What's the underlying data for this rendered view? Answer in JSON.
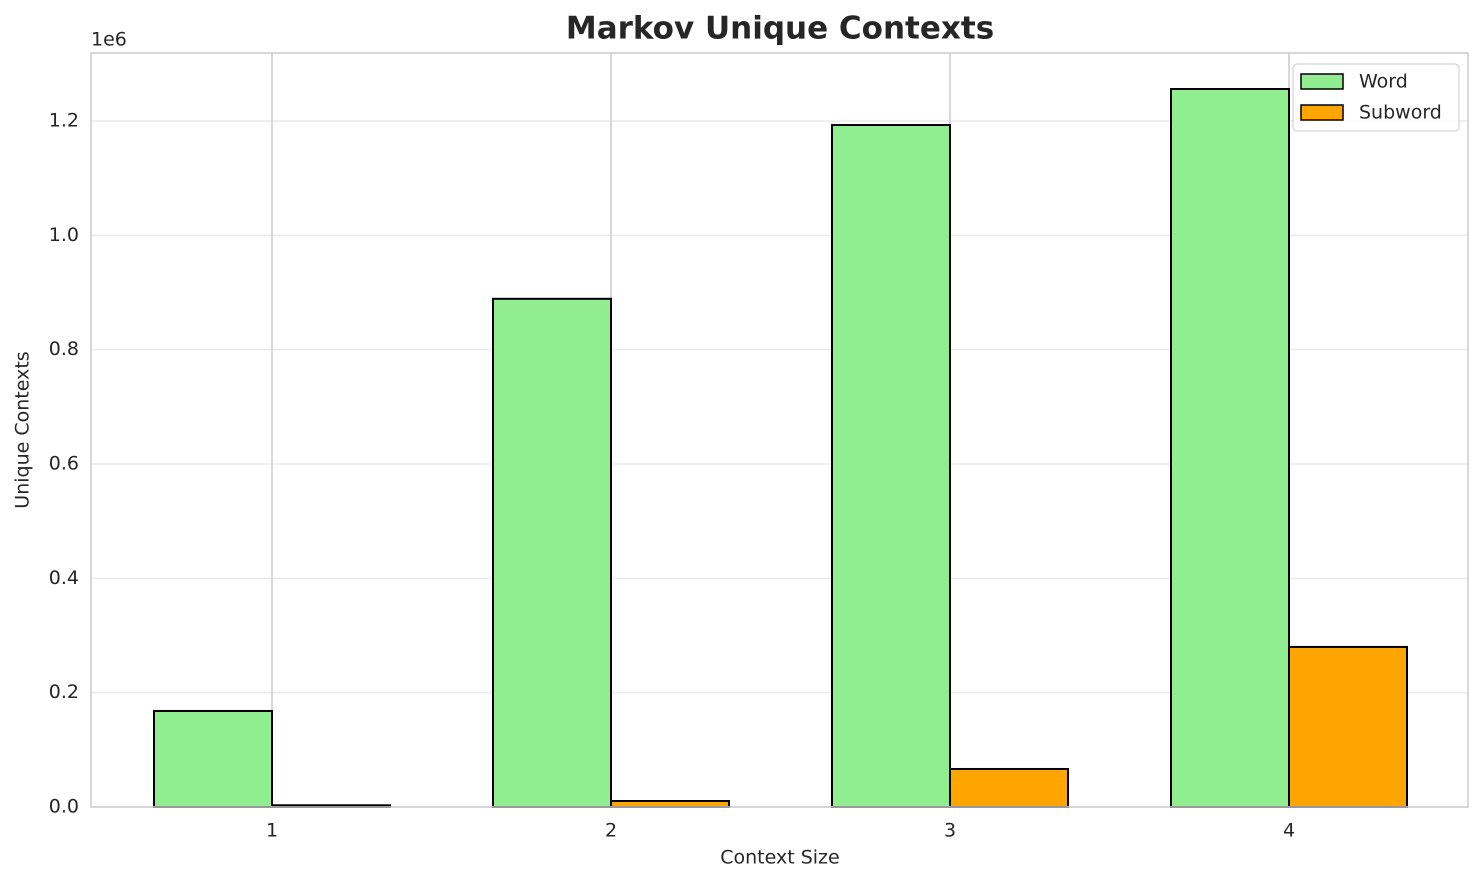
{
  "chart_data": {
    "type": "bar",
    "title": "Markov Unique Contexts",
    "x_label": "Context Size",
    "y_label": "Unique Contexts",
    "y_offset_label": "1e6",
    "categories": [
      "1",
      "2",
      "3",
      "4"
    ],
    "series": [
      {
        "name": "Word",
        "color": "#90ee90",
        "values": [
          168000,
          889000,
          1193000,
          1256000
        ]
      },
      {
        "name": "Subword",
        "color": "#ffa500",
        "values": [
          3000,
          10500,
          66500,
          280000
        ]
      }
    ],
    "ylim": [
      0,
      1319000
    ],
    "yticks": [
      {
        "value": 0,
        "label": "0.0"
      },
      {
        "value": 200000,
        "label": "0.2"
      },
      {
        "value": 400000,
        "label": "0.4"
      },
      {
        "value": 600000,
        "label": "0.6"
      },
      {
        "value": 800000,
        "label": "0.8"
      },
      {
        "value": 1000000,
        "label": "1.0"
      },
      {
        "value": 1200000,
        "label": "1.2"
      }
    ],
    "grid": true,
    "legend": "upper right"
  }
}
